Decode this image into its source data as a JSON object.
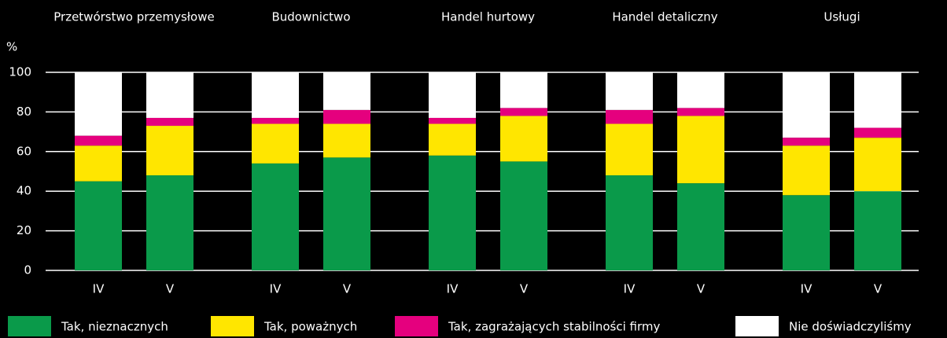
{
  "chart_data": {
    "type": "stacked-bar",
    "y_label": "%",
    "groups": [
      "Przetwórstwo przemysłowe",
      "Budownictwo",
      "Handel hurtowy",
      "Handel detaliczny",
      "Usługi"
    ],
    "categories": [
      "IV",
      "V",
      "IV",
      "V",
      "IV",
      "V",
      "IV",
      "V",
      "IV",
      "V"
    ],
    "series": [
      {
        "name": "Tak, nieznacznych",
        "color": "#0a9a4a",
        "values": [
          45,
          48,
          54,
          57,
          58,
          55,
          48,
          44,
          38,
          40
        ]
      },
      {
        "name": "Tak, poważnych",
        "color": "#ffe600",
        "values": [
          18,
          25,
          20,
          17,
          16,
          23,
          26,
          34,
          25,
          27
        ]
      },
      {
        "name": "Tak, zagrażających stabilności firmy",
        "color": "#e5007e",
        "values": [
          5,
          4,
          3,
          7,
          3,
          4,
          7,
          4,
          4,
          5
        ]
      },
      {
        "name": "Nie doświadczyliśmy",
        "color": "#ffffff",
        "values": [
          32,
          23,
          23,
          19,
          23,
          18,
          19,
          18,
          33,
          28
        ]
      }
    ],
    "ylim": [
      0,
      100
    ],
    "yticks": [
      0,
      20,
      40,
      60,
      80,
      100
    ],
    "grid": true,
    "legend": "bottom"
  }
}
